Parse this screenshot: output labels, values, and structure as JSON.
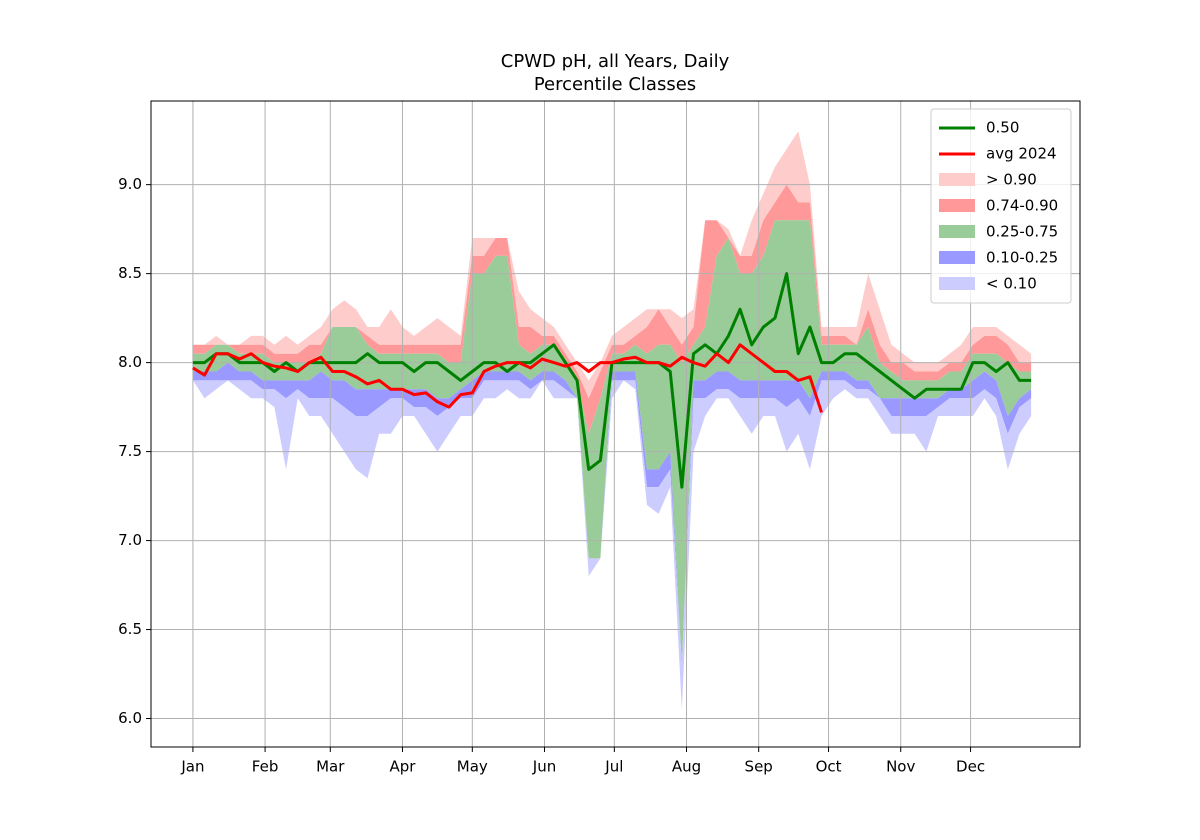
{
  "chart_data": {
    "type": "line",
    "title": "CPWD pH, all Years, Daily",
    "subtitle": "Percentile Classes",
    "x": [
      1,
      6,
      11,
      16,
      21,
      26,
      31,
      36,
      41,
      46,
      51,
      56,
      61,
      66,
      71,
      76,
      81,
      86,
      91,
      96,
      101,
      106,
      111,
      116,
      121,
      126,
      131,
      136,
      141,
      146,
      151,
      156,
      161,
      166,
      171,
      176,
      181,
      186,
      191,
      196,
      201,
      206,
      211,
      216,
      221,
      226,
      231,
      236,
      241,
      246,
      251,
      256,
      261,
      266,
      271,
      276,
      281,
      286,
      291,
      296,
      301,
      306,
      311,
      316,
      321,
      326,
      331,
      336,
      341,
      346,
      351,
      356,
      361
    ],
    "xlim": [
      -17,
      382
    ],
    "xticks": [
      {
        "value": 1,
        "label": "Jan"
      },
      {
        "value": 32,
        "label": "Feb"
      },
      {
        "value": 60,
        "label": "Mar"
      },
      {
        "value": 91,
        "label": "Apr"
      },
      {
        "value": 121,
        "label": "May"
      },
      {
        "value": 152,
        "label": "Jun"
      },
      {
        "value": 182,
        "label": "Jul"
      },
      {
        "value": 213,
        "label": "Aug"
      },
      {
        "value": 244,
        "label": "Sep"
      },
      {
        "value": 274,
        "label": "Oct"
      },
      {
        "value": 305,
        "label": "Nov"
      },
      {
        "value": 335,
        "label": "Dec"
      }
    ],
    "ylim": [
      5.84,
      9.47
    ],
    "yticks": [
      {
        "value": 6,
        "label": "6.0"
      },
      6.5,
      {
        "value": 7,
        "label": "7.0"
      },
      7.5,
      {
        "value": 8,
        "label": "8.0"
      },
      8.5,
      {
        "value": 9,
        "label": "9.0"
      }
    ],
    "grid": true,
    "legend": "upper right",
    "bands": [
      {
        "name": "> 0.90",
        "color": "#ffcccc",
        "lower": [
          8.1,
          8.1,
          8.1,
          8.1,
          8.1,
          8.1,
          8.1,
          8.05,
          8.05,
          8.05,
          8.1,
          8.1,
          8.2,
          8.2,
          8.2,
          8.15,
          8.1,
          8.1,
          8.1,
          8.1,
          8.1,
          8.1,
          8.1,
          8.1,
          8.6,
          8.6,
          8.7,
          8.7,
          8.2,
          8.2,
          8.15,
          8.15,
          8.05,
          7.95,
          7.8,
          7.95,
          8.1,
          8.1,
          8.15,
          8.2,
          8.3,
          8.2,
          8.1,
          8.2,
          8.8,
          8.8,
          8.7,
          8.6,
          8.6,
          8.8,
          8.9,
          9.0,
          8.9,
          8.9,
          8.15,
          8.15,
          8.15,
          8.1,
          8.3,
          8.1,
          8.0,
          8.0,
          7.95,
          7.95,
          7.95,
          8.0,
          8.0,
          8.1,
          8.15,
          8.15,
          8.1,
          8.0,
          8.0
        ],
        "values": [
          8.1,
          8.1,
          8.15,
          8.1,
          8.1,
          8.15,
          8.15,
          8.1,
          8.15,
          8.1,
          8.15,
          8.2,
          8.3,
          8.35,
          8.3,
          8.2,
          8.2,
          8.3,
          8.2,
          8.15,
          8.2,
          8.25,
          8.2,
          8.15,
          8.7,
          8.7,
          8.7,
          8.7,
          8.4,
          8.3,
          8.25,
          8.2,
          8.1,
          8.0,
          7.9,
          8.0,
          8.15,
          8.2,
          8.25,
          8.3,
          8.3,
          8.3,
          8.25,
          8.3,
          8.8,
          8.8,
          8.75,
          8.6,
          8.8,
          8.95,
          9.1,
          9.2,
          9.3,
          9.0,
          8.2,
          8.2,
          8.2,
          8.2,
          8.5,
          8.3,
          8.1,
          8.05,
          8.0,
          8.0,
          8.0,
          8.05,
          8.1,
          8.2,
          8.2,
          8.2,
          8.15,
          8.1,
          8.05
        ]
      },
      {
        "name": "0.74-0.90",
        "color": "#ff9999",
        "lower": [
          8.05,
          8.05,
          8.1,
          8.1,
          8.05,
          8.05,
          8.05,
          8.0,
          8.0,
          8.0,
          8.0,
          8.05,
          8.2,
          8.2,
          8.2,
          8.1,
          8.05,
          8.05,
          8.05,
          8.05,
          8.05,
          8.05,
          8.0,
          8.0,
          8.5,
          8.5,
          8.6,
          8.6,
          8.1,
          8.05,
          8.1,
          8.1,
          8.0,
          7.9,
          7.6,
          7.8,
          8.05,
          8.05,
          8.1,
          8.05,
          8.1,
          8.1,
          8.0,
          8.1,
          8.2,
          8.6,
          8.7,
          8.5,
          8.5,
          8.6,
          8.8,
          8.8,
          8.8,
          8.8,
          8.1,
          8.1,
          8.1,
          8.1,
          8.2,
          8.0,
          7.95,
          7.9,
          7.9,
          7.9,
          7.9,
          7.95,
          7.95,
          8.05,
          8.05,
          8.05,
          8.0,
          7.95,
          7.95
        ],
        "values": [
          8.1,
          8.1,
          8.1,
          8.1,
          8.1,
          8.1,
          8.1,
          8.05,
          8.05,
          8.05,
          8.1,
          8.1,
          8.2,
          8.2,
          8.2,
          8.15,
          8.1,
          8.1,
          8.1,
          8.1,
          8.1,
          8.1,
          8.1,
          8.1,
          8.6,
          8.6,
          8.7,
          8.7,
          8.2,
          8.2,
          8.15,
          8.15,
          8.05,
          7.95,
          7.8,
          7.95,
          8.1,
          8.1,
          8.15,
          8.2,
          8.3,
          8.2,
          8.1,
          8.2,
          8.8,
          8.8,
          8.7,
          8.6,
          8.6,
          8.8,
          8.9,
          9.0,
          8.9,
          8.9,
          8.15,
          8.15,
          8.15,
          8.1,
          8.3,
          8.1,
          8.0,
          8.0,
          7.95,
          7.95,
          7.95,
          8.0,
          8.0,
          8.1,
          8.15,
          8.15,
          8.1,
          8.0,
          8.0
        ]
      },
      {
        "name": "0.25-0.75",
        "color": "#99cc99",
        "lower": [
          7.95,
          7.95,
          7.95,
          8.0,
          7.95,
          7.95,
          7.9,
          7.9,
          7.9,
          7.9,
          7.9,
          7.95,
          7.9,
          7.9,
          7.85,
          7.85,
          7.85,
          7.85,
          7.85,
          7.85,
          7.85,
          7.8,
          7.8,
          7.85,
          7.9,
          7.95,
          7.95,
          7.95,
          7.95,
          7.9,
          7.95,
          7.95,
          7.9,
          7.8,
          6.9,
          6.9,
          7.95,
          7.95,
          7.95,
          7.4,
          7.4,
          7.5,
          6.3,
          7.9,
          7.9,
          7.95,
          7.95,
          7.9,
          7.9,
          7.9,
          7.9,
          7.9,
          7.9,
          7.8,
          7.95,
          7.95,
          7.95,
          7.9,
          7.9,
          7.8,
          7.8,
          7.8,
          7.8,
          7.8,
          7.8,
          7.85,
          7.85,
          7.9,
          7.95,
          7.9,
          7.7,
          7.8,
          7.85
        ],
        "values": [
          8.05,
          8.05,
          8.1,
          8.1,
          8.05,
          8.05,
          8.05,
          8.0,
          8.0,
          8.0,
          8.0,
          8.05,
          8.2,
          8.2,
          8.2,
          8.1,
          8.05,
          8.05,
          8.05,
          8.05,
          8.05,
          8.05,
          8.0,
          8.0,
          8.5,
          8.5,
          8.6,
          8.6,
          8.1,
          8.05,
          8.1,
          8.1,
          8.0,
          7.9,
          7.6,
          7.8,
          8.05,
          8.05,
          8.1,
          8.05,
          8.1,
          8.1,
          8.0,
          8.1,
          8.2,
          8.6,
          8.7,
          8.5,
          8.5,
          8.6,
          8.8,
          8.8,
          8.8,
          8.8,
          8.1,
          8.1,
          8.1,
          8.1,
          8.2,
          8.0,
          7.95,
          7.9,
          7.9,
          7.9,
          7.9,
          7.95,
          7.95,
          8.05,
          8.05,
          8.05,
          8.0,
          7.95,
          7.95
        ]
      },
      {
        "name": "0.10-0.25",
        "color": "#9999ff",
        "lower": [
          7.9,
          7.9,
          7.9,
          7.9,
          7.9,
          7.9,
          7.85,
          7.85,
          7.8,
          7.85,
          7.8,
          7.8,
          7.8,
          7.75,
          7.7,
          7.7,
          7.75,
          7.8,
          7.8,
          7.75,
          7.75,
          7.7,
          7.75,
          7.8,
          7.8,
          7.9,
          7.9,
          7.9,
          7.9,
          7.85,
          7.9,
          7.9,
          7.85,
          7.8,
          6.9,
          6.9,
          7.9,
          7.9,
          7.9,
          7.3,
          7.3,
          7.4,
          6.3,
          7.8,
          7.8,
          7.85,
          7.85,
          7.8,
          7.8,
          7.8,
          7.8,
          7.75,
          7.8,
          7.7,
          7.9,
          7.9,
          7.9,
          7.85,
          7.85,
          7.8,
          7.7,
          7.7,
          7.7,
          7.7,
          7.75,
          7.8,
          7.8,
          7.8,
          7.85,
          7.8,
          7.6,
          7.75,
          7.8
        ],
        "values": [
          7.95,
          7.95,
          7.95,
          8.0,
          7.95,
          7.95,
          7.9,
          7.9,
          7.9,
          7.9,
          7.9,
          7.95,
          7.9,
          7.9,
          7.85,
          7.85,
          7.85,
          7.85,
          7.85,
          7.85,
          7.85,
          7.8,
          7.8,
          7.85,
          7.9,
          7.95,
          7.95,
          7.95,
          7.95,
          7.9,
          7.95,
          7.95,
          7.9,
          7.8,
          6.9,
          6.9,
          7.95,
          7.95,
          7.95,
          7.4,
          7.4,
          7.5,
          6.3,
          7.9,
          7.9,
          7.95,
          7.95,
          7.9,
          7.9,
          7.9,
          7.9,
          7.9,
          7.9,
          7.8,
          7.95,
          7.95,
          7.95,
          7.9,
          7.9,
          7.8,
          7.8,
          7.8,
          7.8,
          7.8,
          7.8,
          7.85,
          7.85,
          7.9,
          7.95,
          7.9,
          7.7,
          7.8,
          7.85
        ]
      },
      {
        "name": "< 0.10",
        "color": "#ccccff",
        "lower": [
          7.9,
          7.8,
          7.85,
          7.9,
          7.85,
          7.8,
          7.8,
          7.75,
          7.4,
          7.8,
          7.7,
          7.7,
          7.6,
          7.5,
          7.4,
          7.35,
          7.6,
          7.6,
          7.7,
          7.7,
          7.6,
          7.5,
          7.6,
          7.7,
          7.7,
          7.8,
          7.8,
          7.85,
          7.8,
          7.8,
          7.9,
          7.8,
          7.8,
          7.8,
          6.8,
          6.9,
          7.8,
          7.9,
          7.85,
          7.2,
          7.15,
          7.3,
          6.05,
          7.5,
          7.7,
          7.8,
          7.8,
          7.7,
          7.6,
          7.7,
          7.7,
          7.5,
          7.6,
          7.4,
          7.7,
          7.8,
          7.85,
          7.8,
          7.8,
          7.7,
          7.6,
          7.6,
          7.6,
          7.5,
          7.7,
          7.7,
          7.7,
          7.7,
          7.8,
          7.7,
          7.4,
          7.6,
          7.7
        ],
        "values": [
          7.9,
          7.9,
          7.9,
          7.9,
          7.9,
          7.9,
          7.85,
          7.85,
          7.8,
          7.85,
          7.8,
          7.8,
          7.8,
          7.75,
          7.7,
          7.7,
          7.75,
          7.8,
          7.8,
          7.75,
          7.75,
          7.7,
          7.75,
          7.8,
          7.8,
          7.9,
          7.9,
          7.9,
          7.9,
          7.85,
          7.9,
          7.9,
          7.85,
          7.8,
          6.9,
          6.9,
          7.9,
          7.9,
          7.9,
          7.3,
          7.3,
          7.4,
          6.3,
          7.8,
          7.8,
          7.85,
          7.85,
          7.8,
          7.8,
          7.8,
          7.8,
          7.75,
          7.8,
          7.7,
          7.9,
          7.9,
          7.9,
          7.85,
          7.85,
          7.8,
          7.7,
          7.7,
          7.7,
          7.7,
          7.75,
          7.8,
          7.8,
          7.8,
          7.85,
          7.8,
          7.6,
          7.75,
          7.8
        ]
      }
    ],
    "series": [
      {
        "name": "0.50",
        "color": "#008000",
        "values": [
          8.0,
          8.0,
          8.05,
          8.05,
          8.0,
          8.0,
          8.0,
          7.95,
          8.0,
          7.95,
          8.0,
          8.0,
          8.0,
          8.0,
          8.0,
          8.05,
          8.0,
          8.0,
          8.0,
          7.95,
          8.0,
          8.0,
          7.95,
          7.9,
          7.95,
          8.0,
          8.0,
          7.95,
          8.0,
          8.0,
          8.05,
          8.1,
          8.0,
          7.9,
          7.4,
          7.45,
          8.0,
          8.0,
          8.0,
          8.0,
          8.0,
          7.95,
          7.3,
          8.05,
          8.1,
          8.05,
          8.15,
          8.3,
          8.1,
          8.2,
          8.25,
          8.5,
          8.05,
          8.2,
          8.0,
          8.0,
          8.05,
          8.05,
          8.0,
          7.95,
          7.9,
          7.85,
          7.8,
          7.85,
          7.85,
          7.85,
          7.85,
          8.0,
          8.0,
          7.95,
          8.0,
          7.9,
          7.9
        ]
      },
      {
        "name": "avg 2024",
        "color": "#ff0000",
        "values": [
          7.97,
          7.93,
          8.05,
          8.05,
          8.02,
          8.05,
          8.0,
          7.98,
          7.97,
          7.95,
          8.0,
          8.03,
          7.95,
          7.95,
          7.92,
          7.88,
          7.9,
          7.85,
          7.85,
          7.82,
          7.83,
          7.78,
          7.75,
          7.82,
          7.83,
          7.95,
          7.98,
          8.0,
          8.0,
          7.97,
          8.02,
          8.0,
          7.98,
          8.0,
          7.95,
          8.0,
          8.0,
          8.02,
          8.03,
          8.0,
          8.0,
          7.98,
          8.03,
          8.0,
          7.98,
          8.05,
          8.0,
          8.1,
          8.05,
          8.0,
          7.95,
          7.95,
          7.9,
          7.92,
          7.72,
          null,
          null,
          null,
          null,
          null,
          null,
          null,
          null,
          null,
          null,
          null,
          null,
          null,
          null,
          null,
          null,
          null,
          null
        ]
      }
    ]
  }
}
